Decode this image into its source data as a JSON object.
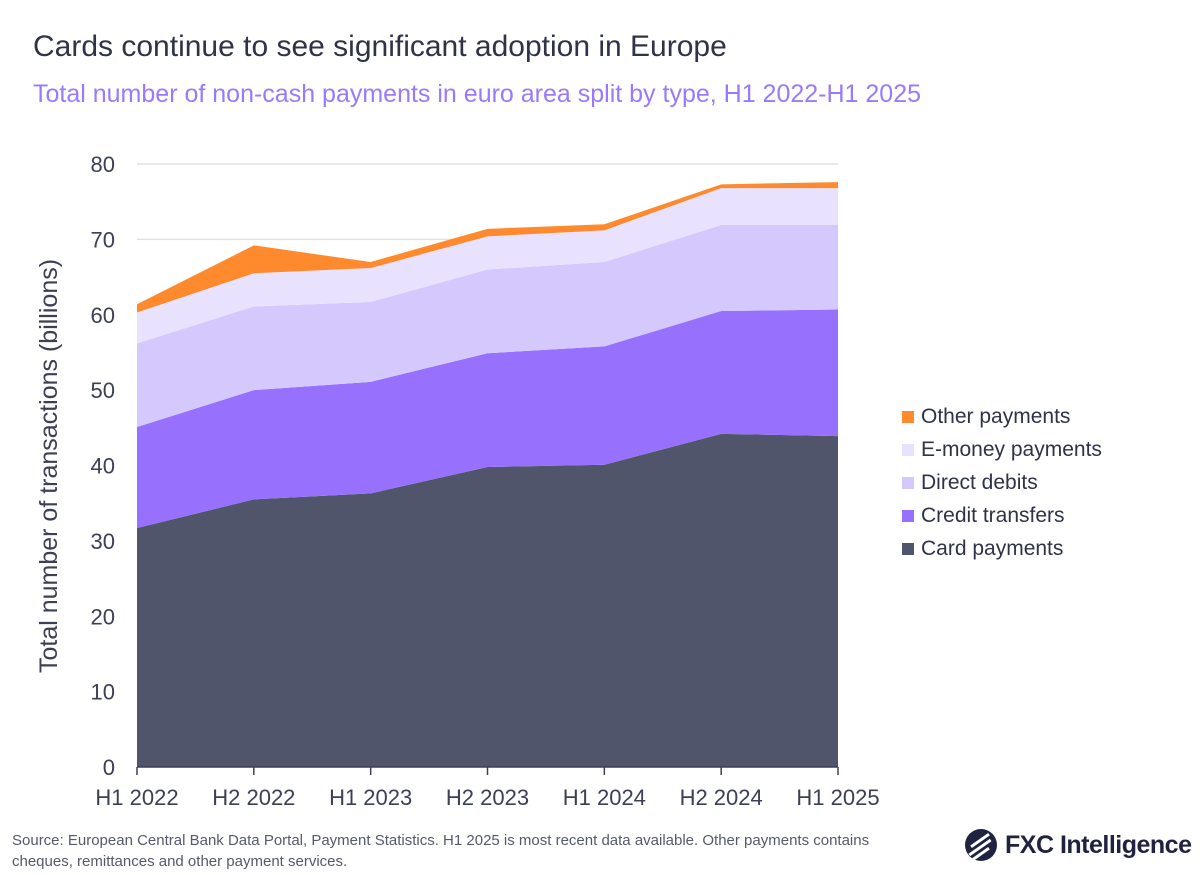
{
  "title": "Cards continue to see significant adoption in Europe",
  "subtitle": "Total number of non-cash payments in euro area split by type, H1 2022-H1 2025",
  "chart_data": {
    "type": "area",
    "stacked": true,
    "categories": [
      "H1 2022",
      "H2 2022",
      "H1 2023",
      "H2 2023",
      "H1 2024",
      "H2 2024",
      "H1 2025"
    ],
    "ylabel": "Total number of transactions (billions)",
    "xlabel": "",
    "ylim": [
      0,
      80
    ],
    "yticks": [
      "0",
      "10",
      "20",
      "30",
      "40",
      "50",
      "60",
      "70",
      "80"
    ],
    "grid": true,
    "legend_position": "right",
    "series": [
      {
        "name": "Card payments",
        "color": "#50556b",
        "values": [
          31.7,
          35.5,
          36.3,
          39.8,
          40.1,
          44.2,
          43.9
        ]
      },
      {
        "name": "Credit transfers",
        "color": "#9771fd",
        "values": [
          13.4,
          14.5,
          14.8,
          15.1,
          15.7,
          16.3,
          16.8
        ]
      },
      {
        "name": "Direct debits",
        "color": "#d5c8fd",
        "values": [
          11.1,
          11.1,
          10.6,
          11.1,
          11.2,
          11.4,
          11.2
        ]
      },
      {
        "name": "E-money payments",
        "color": "#e9e2fe",
        "values": [
          4.1,
          4.4,
          4.5,
          4.4,
          4.2,
          4.9,
          4.9
        ]
      },
      {
        "name": "Other payments",
        "color": "#ff8a2e",
        "values": [
          1.1,
          3.7,
          0.8,
          1.0,
          0.8,
          0.5,
          0.8
        ]
      }
    ],
    "legend_order": [
      "Other payments",
      "E-money payments",
      "Direct debits",
      "Credit transfers",
      "Card payments"
    ]
  },
  "source": "Source: European Central Bank Data Portal, Payment Statistics. H1 2025 is most recent data available. Other payments contains cheques, remittances and other payment services.",
  "logo_text": "FXC Intelligence"
}
